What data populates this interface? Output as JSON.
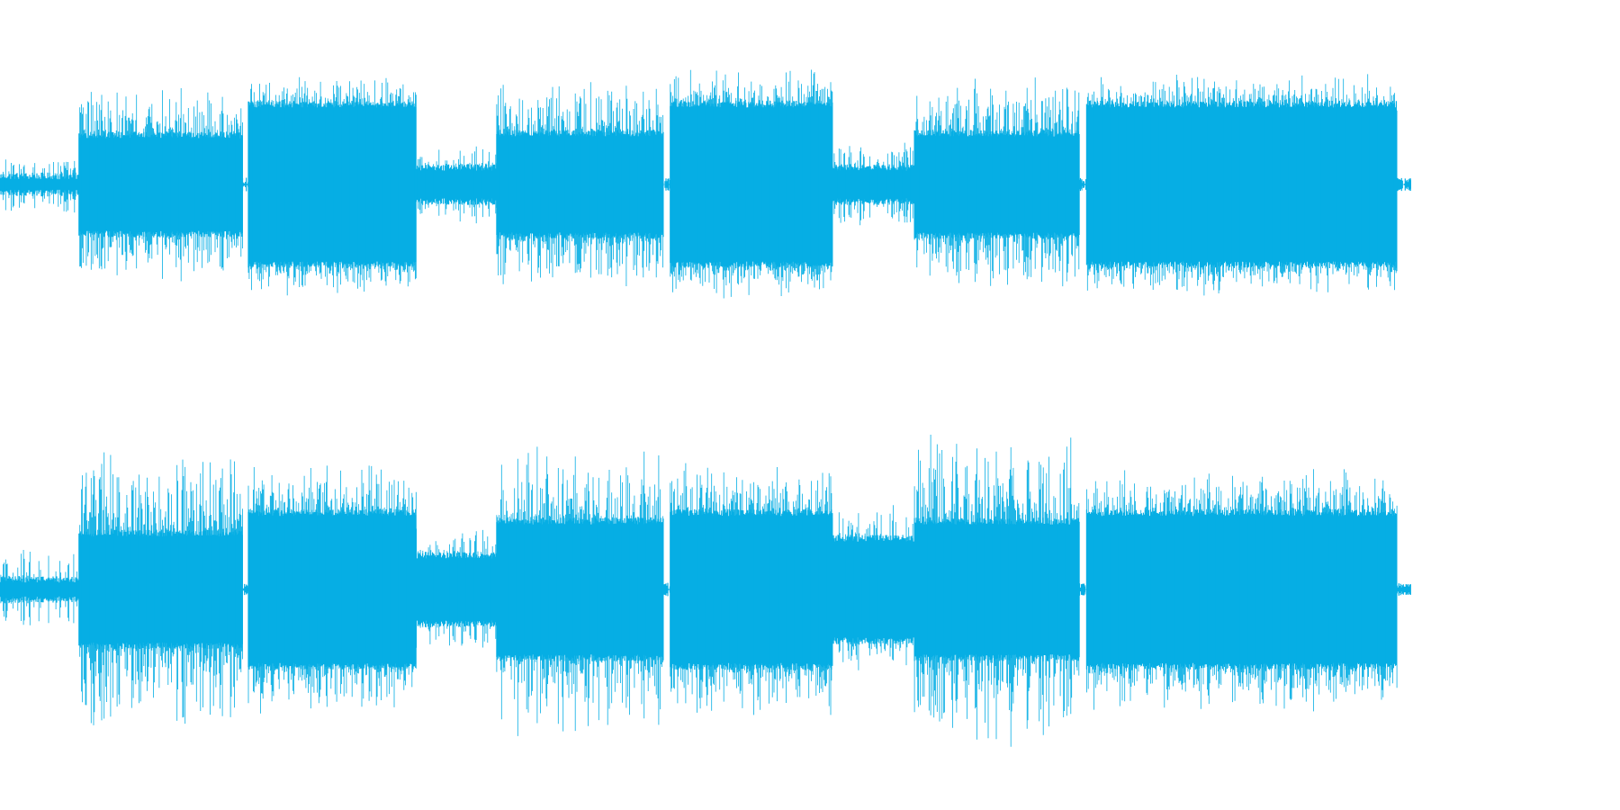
{
  "waveform": {
    "color": "#06aee4",
    "background": "#ffffff",
    "channel_count": 2,
    "channels": [
      {
        "id": "channel-1",
        "segments": [
          {
            "t0": 0.0,
            "t1": 0.056,
            "body": 0.05,
            "peak": 0.16,
            "density": 0.45
          },
          {
            "t0": 0.056,
            "t1": 0.172,
            "body": 0.29,
            "peak": 0.52,
            "density": 0.85
          },
          {
            "t0": 0.172,
            "t1": 0.176,
            "body": 0.02,
            "peak": 0.05,
            "density": 0.2
          },
          {
            "t0": 0.176,
            "t1": 0.295,
            "body": 0.47,
            "peak": 0.6,
            "density": 0.85
          },
          {
            "t0": 0.295,
            "t1": 0.352,
            "body": 0.1,
            "peak": 0.22,
            "density": 0.6
          },
          {
            "t0": 0.352,
            "t1": 0.47,
            "body": 0.3,
            "peak": 0.55,
            "density": 0.85
          },
          {
            "t0": 0.47,
            "t1": 0.475,
            "body": 0.02,
            "peak": 0.05,
            "density": 0.2
          },
          {
            "t0": 0.475,
            "t1": 0.59,
            "body": 0.47,
            "peak": 0.63,
            "density": 0.85
          },
          {
            "t0": 0.59,
            "t1": 0.648,
            "body": 0.1,
            "peak": 0.24,
            "density": 0.6
          },
          {
            "t0": 0.648,
            "t1": 0.765,
            "body": 0.3,
            "peak": 0.58,
            "density": 0.85
          },
          {
            "t0": 0.765,
            "t1": 0.77,
            "body": 0.02,
            "peak": 0.05,
            "density": 0.2
          },
          {
            "t0": 0.77,
            "t1": 0.99,
            "body": 0.47,
            "peak": 0.6,
            "density": 0.85
          },
          {
            "t0": 0.99,
            "t1": 1.0,
            "body": 0.02,
            "peak": 0.04,
            "density": 0.2
          }
        ]
      },
      {
        "id": "channel-2",
        "segments": [
          {
            "t0": 0.0,
            "t1": 0.056,
            "body": 0.06,
            "peak": 0.22,
            "density": 0.45
          },
          {
            "t0": 0.056,
            "t1": 0.172,
            "body": 0.33,
            "peak": 0.77,
            "density": 0.85
          },
          {
            "t0": 0.172,
            "t1": 0.176,
            "body": 0.02,
            "peak": 0.05,
            "density": 0.2
          },
          {
            "t0": 0.176,
            "t1": 0.295,
            "body": 0.45,
            "peak": 0.68,
            "density": 0.85
          },
          {
            "t0": 0.295,
            "t1": 0.352,
            "body": 0.2,
            "peak": 0.34,
            "density": 0.6
          },
          {
            "t0": 0.352,
            "t1": 0.47,
            "body": 0.4,
            "peak": 0.8,
            "density": 0.85
          },
          {
            "t0": 0.47,
            "t1": 0.475,
            "body": 0.02,
            "peak": 0.05,
            "density": 0.2
          },
          {
            "t0": 0.475,
            "t1": 0.59,
            "body": 0.45,
            "peak": 0.68,
            "density": 0.85
          },
          {
            "t0": 0.59,
            "t1": 0.648,
            "body": 0.3,
            "peak": 0.45,
            "density": 0.6
          },
          {
            "t0": 0.648,
            "t1": 0.765,
            "body": 0.4,
            "peak": 0.85,
            "density": 0.85
          },
          {
            "t0": 0.765,
            "t1": 0.77,
            "body": 0.02,
            "peak": 0.05,
            "density": 0.2
          },
          {
            "t0": 0.77,
            "t1": 0.99,
            "body": 0.45,
            "peak": 0.66,
            "density": 0.85
          },
          {
            "t0": 0.99,
            "t1": 1.0,
            "body": 0.02,
            "peak": 0.04,
            "density": 0.2
          }
        ]
      }
    ]
  }
}
